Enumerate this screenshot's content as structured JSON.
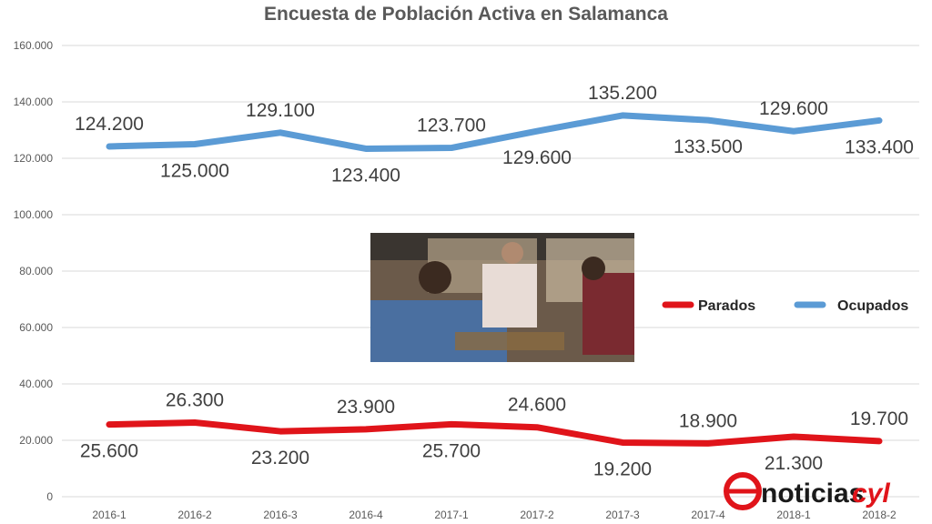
{
  "chart_data": {
    "type": "line",
    "title": "Encuesta de Población Activa en Salamanca",
    "categories": [
      "2016-1",
      "2016-2",
      "2016-3",
      "2016-4",
      "2017-1",
      "2017-2",
      "2017-3",
      "2017-4",
      "2018-1",
      "2018-2"
    ],
    "ylim": [
      0,
      160000
    ],
    "yticks": [
      0,
      20000,
      40000,
      60000,
      80000,
      100000,
      120000,
      140000,
      160000
    ],
    "ytick_labels": [
      "0",
      "20.000",
      "40.000",
      "60.000",
      "80.000",
      "100.000",
      "120.000",
      "140.000",
      "160.000"
    ],
    "grid": true,
    "legend_position": "right",
    "series": [
      {
        "name": "Parados",
        "color": "#e0141a",
        "values": [
          25600,
          26300,
          23200,
          23900,
          25700,
          24600,
          19200,
          18900,
          21300,
          19700
        ],
        "labels": [
          "25.600",
          "26.300",
          "23.200",
          "23.900",
          "25.700",
          "24.600",
          "19.200",
          "18.900",
          "21.300",
          "19.700"
        ],
        "label_side": [
          "below",
          "above",
          "below",
          "above",
          "below",
          "above",
          "below",
          "above",
          "below",
          "above"
        ]
      },
      {
        "name": "Ocupados",
        "color": "#5b9bd5",
        "values": [
          124200,
          125000,
          129100,
          123400,
          123700,
          129600,
          135200,
          133500,
          129600,
          133400
        ],
        "labels": [
          "124.200",
          "125.000",
          "129.100",
          "123.400",
          "123.700",
          "129.600",
          "135.200",
          "133.500",
          "129.600",
          "133.400"
        ],
        "label_side": [
          "above",
          "below",
          "above",
          "below",
          "above",
          "below",
          "above",
          "below",
          "above",
          "below"
        ]
      }
    ]
  },
  "brand": {
    "logo_text": "noticias",
    "logo_suffix": "cyl",
    "logo_color": "#e0141a",
    "text_color": "#1a1a1a"
  },
  "photo": {
    "icon": "restaurant-photo"
  }
}
